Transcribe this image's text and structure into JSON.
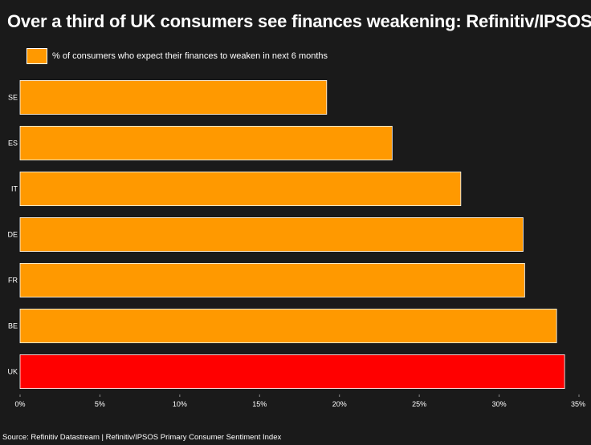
{
  "chart_data": {
    "type": "bar",
    "orientation": "horizontal",
    "title": "Over a third of UK consumers see finances weakening: Refinitiv/IPSOS",
    "categories": [
      "SE",
      "ES",
      "IT",
      "DE",
      "FR",
      "BE",
      "UK"
    ],
    "series": [
      {
        "name": "% of consumers who expect their finances to weaken in next 6 months",
        "values": [
          19.2,
          23.3,
          27.6,
          31.5,
          31.6,
          33.6,
          34.1
        ]
      }
    ],
    "highlight_category": "UK",
    "xlim": [
      0,
      35
    ],
    "xticks": [
      0,
      5,
      10,
      15,
      20,
      25,
      30,
      35
    ],
    "xtick_labels": [
      "0%",
      "5%",
      "10%",
      "15%",
      "20%",
      "25%",
      "30%",
      "35%"
    ],
    "legend_position": "top-left",
    "grid": false,
    "colors": {
      "bar": "#ff9900",
      "highlight": "#ff0000",
      "bar_edge": "#ffffff",
      "background": "#1a1a1a"
    }
  },
  "source": "Source: Refinitiv Datastream | Refinitiv/IPSOS Primary Consumer Sentiment Index"
}
